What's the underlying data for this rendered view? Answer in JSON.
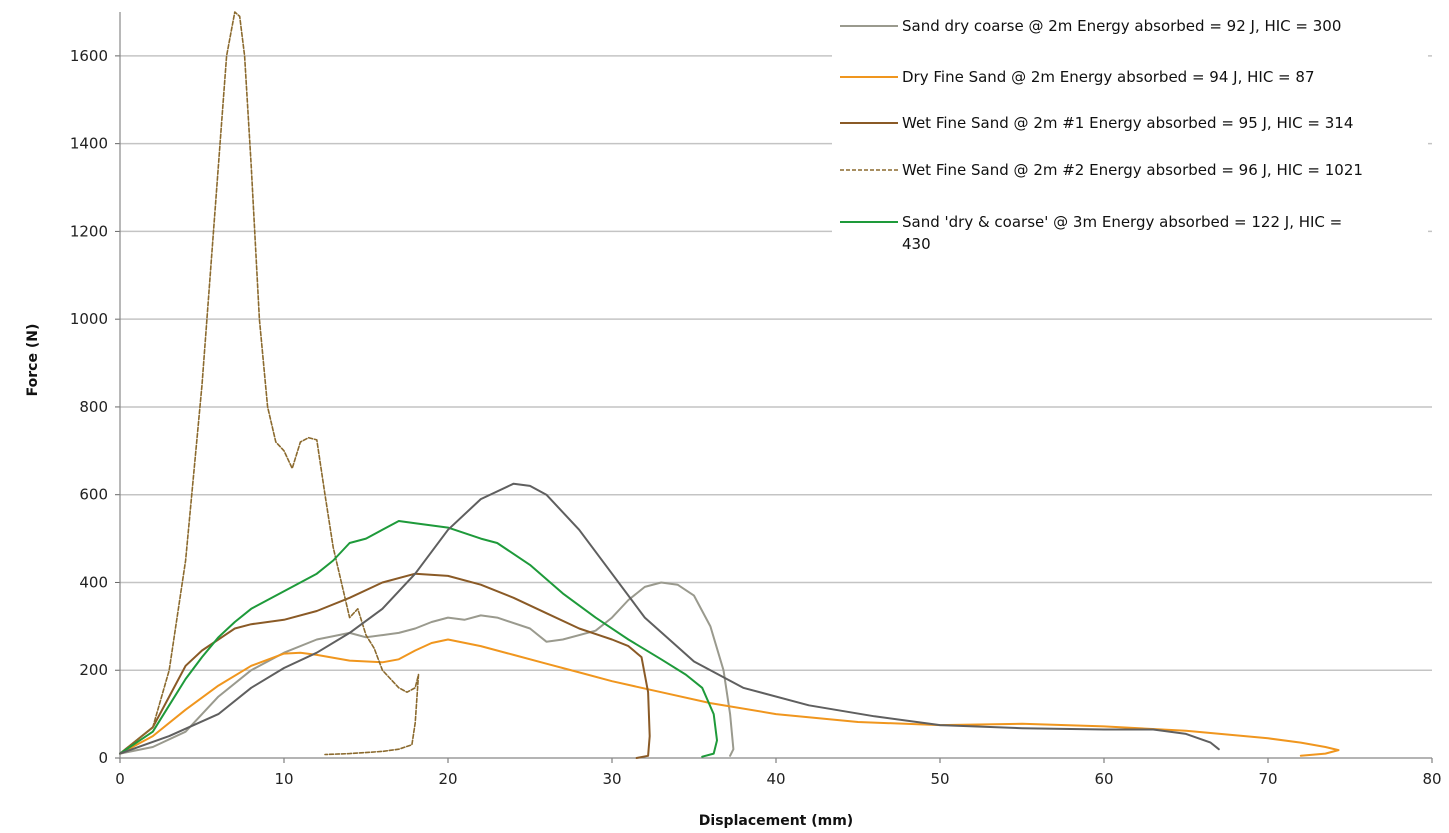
{
  "chart_data": {
    "type": "line",
    "title": "",
    "xlabel": "Displacement (mm)",
    "ylabel": "Force (N)",
    "xlim": [
      0,
      80
    ],
    "ylim": [
      0,
      1700
    ],
    "xticks": [
      "0",
      "10",
      "20",
      "30",
      "40",
      "50",
      "60",
      "70",
      "80"
    ],
    "yticks": [
      "0",
      "200",
      "400",
      "600",
      "800",
      "1000",
      "1200",
      "1400",
      "1600"
    ],
    "grid": "horizontal",
    "legend_position": "top-right",
    "series": [
      {
        "name": "Sand dry coarse @ 2m Energy absorbed = 92 J, HIC = 300",
        "color": "#9a9a8e",
        "dash": "solid",
        "points": [
          [
            0,
            10
          ],
          [
            2,
            25
          ],
          [
            4,
            60
          ],
          [
            6,
            140
          ],
          [
            8,
            200
          ],
          [
            10,
            240
          ],
          [
            12,
            270
          ],
          [
            14,
            285
          ],
          [
            15,
            275
          ],
          [
            16,
            280
          ],
          [
            17,
            285
          ],
          [
            18,
            295
          ],
          [
            19,
            310
          ],
          [
            20,
            320
          ],
          [
            21,
            315
          ],
          [
            22,
            325
          ],
          [
            23,
            320
          ],
          [
            25,
            295
          ],
          [
            26,
            265
          ],
          [
            27,
            270
          ],
          [
            29,
            290
          ],
          [
            30,
            320
          ],
          [
            31,
            360
          ],
          [
            32,
            390
          ],
          [
            33,
            400
          ],
          [
            34,
            395
          ],
          [
            35,
            370
          ],
          [
            36,
            300
          ],
          [
            36.8,
            200
          ],
          [
            37.2,
            100
          ],
          [
            37.4,
            20
          ],
          [
            37.2,
            5
          ]
        ]
      },
      {
        "name": "Dry Fine Sand @ 2m Energy absorbed = 94 J, HIC = 87",
        "color": "#f0961e",
        "dash": "solid",
        "points": [
          [
            0,
            10
          ],
          [
            2,
            50
          ],
          [
            4,
            110
          ],
          [
            6,
            165
          ],
          [
            8,
            210
          ],
          [
            10,
            238
          ],
          [
            11,
            240
          ],
          [
            12,
            235
          ],
          [
            14,
            222
          ],
          [
            16,
            218
          ],
          [
            17,
            225
          ],
          [
            18,
            245
          ],
          [
            19,
            262
          ],
          [
            20,
            270
          ],
          [
            22,
            255
          ],
          [
            24,
            235
          ],
          [
            26,
            215
          ],
          [
            28,
            195
          ],
          [
            30,
            175
          ],
          [
            33,
            150
          ],
          [
            36,
            125
          ],
          [
            40,
            100
          ],
          [
            45,
            82
          ],
          [
            50,
            75
          ],
          [
            55,
            78
          ],
          [
            60,
            72
          ],
          [
            65,
            62
          ],
          [
            70,
            45
          ],
          [
            72,
            35
          ],
          [
            73.5,
            25
          ],
          [
            74.3,
            18
          ],
          [
            73.5,
            10
          ],
          [
            72,
            5
          ]
        ]
      },
      {
        "name": "Wet Fine Sand @ 2m #1 Energy absorbed = 95 J, HIC = 314",
        "color": "#8a5a26",
        "dash": "solid",
        "points": [
          [
            0,
            10
          ],
          [
            2,
            70
          ],
          [
            3,
            140
          ],
          [
            4,
            210
          ],
          [
            5,
            245
          ],
          [
            6,
            270
          ],
          [
            7,
            295
          ],
          [
            8,
            305
          ],
          [
            10,
            315
          ],
          [
            12,
            335
          ],
          [
            14,
            365
          ],
          [
            16,
            400
          ],
          [
            18,
            420
          ],
          [
            20,
            415
          ],
          [
            22,
            395
          ],
          [
            24,
            365
          ],
          [
            26,
            330
          ],
          [
            28,
            295
          ],
          [
            30,
            270
          ],
          [
            31,
            255
          ],
          [
            31.8,
            230
          ],
          [
            32.2,
            150
          ],
          [
            32.3,
            50
          ],
          [
            32.2,
            5
          ],
          [
            31.5,
            0
          ]
        ]
      },
      {
        "name": "Wet Fine Sand @ 2m #2 Energy absorbed = 96 J, HIC = 1021",
        "color": "#8b6a2e",
        "dash": "dashed",
        "points": [
          [
            0,
            10
          ],
          [
            2,
            70
          ],
          [
            3,
            200
          ],
          [
            4,
            450
          ],
          [
            5,
            850
          ],
          [
            6,
            1350
          ],
          [
            6.5,
            1600
          ],
          [
            7,
            1700
          ],
          [
            7.3,
            1690
          ],
          [
            7.6,
            1600
          ],
          [
            8,
            1350
          ],
          [
            8.5,
            1000
          ],
          [
            9,
            800
          ],
          [
            9.5,
            720
          ],
          [
            10,
            700
          ],
          [
            10.5,
            660
          ],
          [
            11,
            720
          ],
          [
            11.5,
            730
          ],
          [
            12,
            725
          ],
          [
            12.5,
            600
          ],
          [
            13,
            480
          ],
          [
            13.5,
            400
          ],
          [
            14,
            320
          ],
          [
            14.5,
            340
          ],
          [
            15,
            280
          ],
          [
            15.5,
            250
          ],
          [
            16,
            200
          ],
          [
            16.5,
            180
          ],
          [
            17,
            160
          ],
          [
            17.5,
            150
          ],
          [
            18,
            160
          ],
          [
            18.2,
            190
          ],
          [
            18,
            80
          ],
          [
            17.8,
            30
          ],
          [
            17,
            20
          ],
          [
            16,
            15
          ],
          [
            14,
            10
          ],
          [
            12.5,
            8
          ]
        ]
      },
      {
        "name": "Sand 'dry & coarse' @ 3m Energy absorbed = 122 J, HIC = 430",
        "color": "#1e9a3a",
        "dash": "solid",
        "points": [
          [
            0,
            10
          ],
          [
            2,
            60
          ],
          [
            3,
            120
          ],
          [
            4,
            180
          ],
          [
            5,
            230
          ],
          [
            6,
            275
          ],
          [
            7,
            310
          ],
          [
            8,
            340
          ],
          [
            10,
            380
          ],
          [
            12,
            420
          ],
          [
            13,
            450
          ],
          [
            14,
            490
          ],
          [
            15,
            500
          ],
          [
            16,
            520
          ],
          [
            17,
            540
          ],
          [
            18,
            535
          ],
          [
            20,
            525
          ],
          [
            22,
            500
          ],
          [
            23,
            490
          ],
          [
            25,
            440
          ],
          [
            27,
            375
          ],
          [
            29,
            320
          ],
          [
            31,
            270
          ],
          [
            33,
            225
          ],
          [
            34.5,
            190
          ],
          [
            35.5,
            160
          ],
          [
            36.2,
            100
          ],
          [
            36.4,
            40
          ],
          [
            36.2,
            10
          ],
          [
            35.5,
            3
          ]
        ]
      },
      {
        "name": "",
        "color": "#5f5f5f",
        "dash": "solid",
        "points": [
          [
            0,
            10
          ],
          [
            3,
            50
          ],
          [
            6,
            100
          ],
          [
            8,
            160
          ],
          [
            10,
            205
          ],
          [
            12,
            240
          ],
          [
            14,
            285
          ],
          [
            16,
            340
          ],
          [
            18,
            420
          ],
          [
            20,
            520
          ],
          [
            22,
            590
          ],
          [
            24,
            625
          ],
          [
            25,
            620
          ],
          [
            26,
            600
          ],
          [
            28,
            520
          ],
          [
            30,
            420
          ],
          [
            32,
            320
          ],
          [
            35,
            220
          ],
          [
            38,
            160
          ],
          [
            42,
            120
          ],
          [
            46,
            95
          ],
          [
            50,
            75
          ],
          [
            55,
            68
          ],
          [
            60,
            65
          ],
          [
            63,
            65
          ],
          [
            65,
            55
          ],
          [
            66.5,
            35
          ],
          [
            67,
            20
          ]
        ]
      }
    ]
  }
}
